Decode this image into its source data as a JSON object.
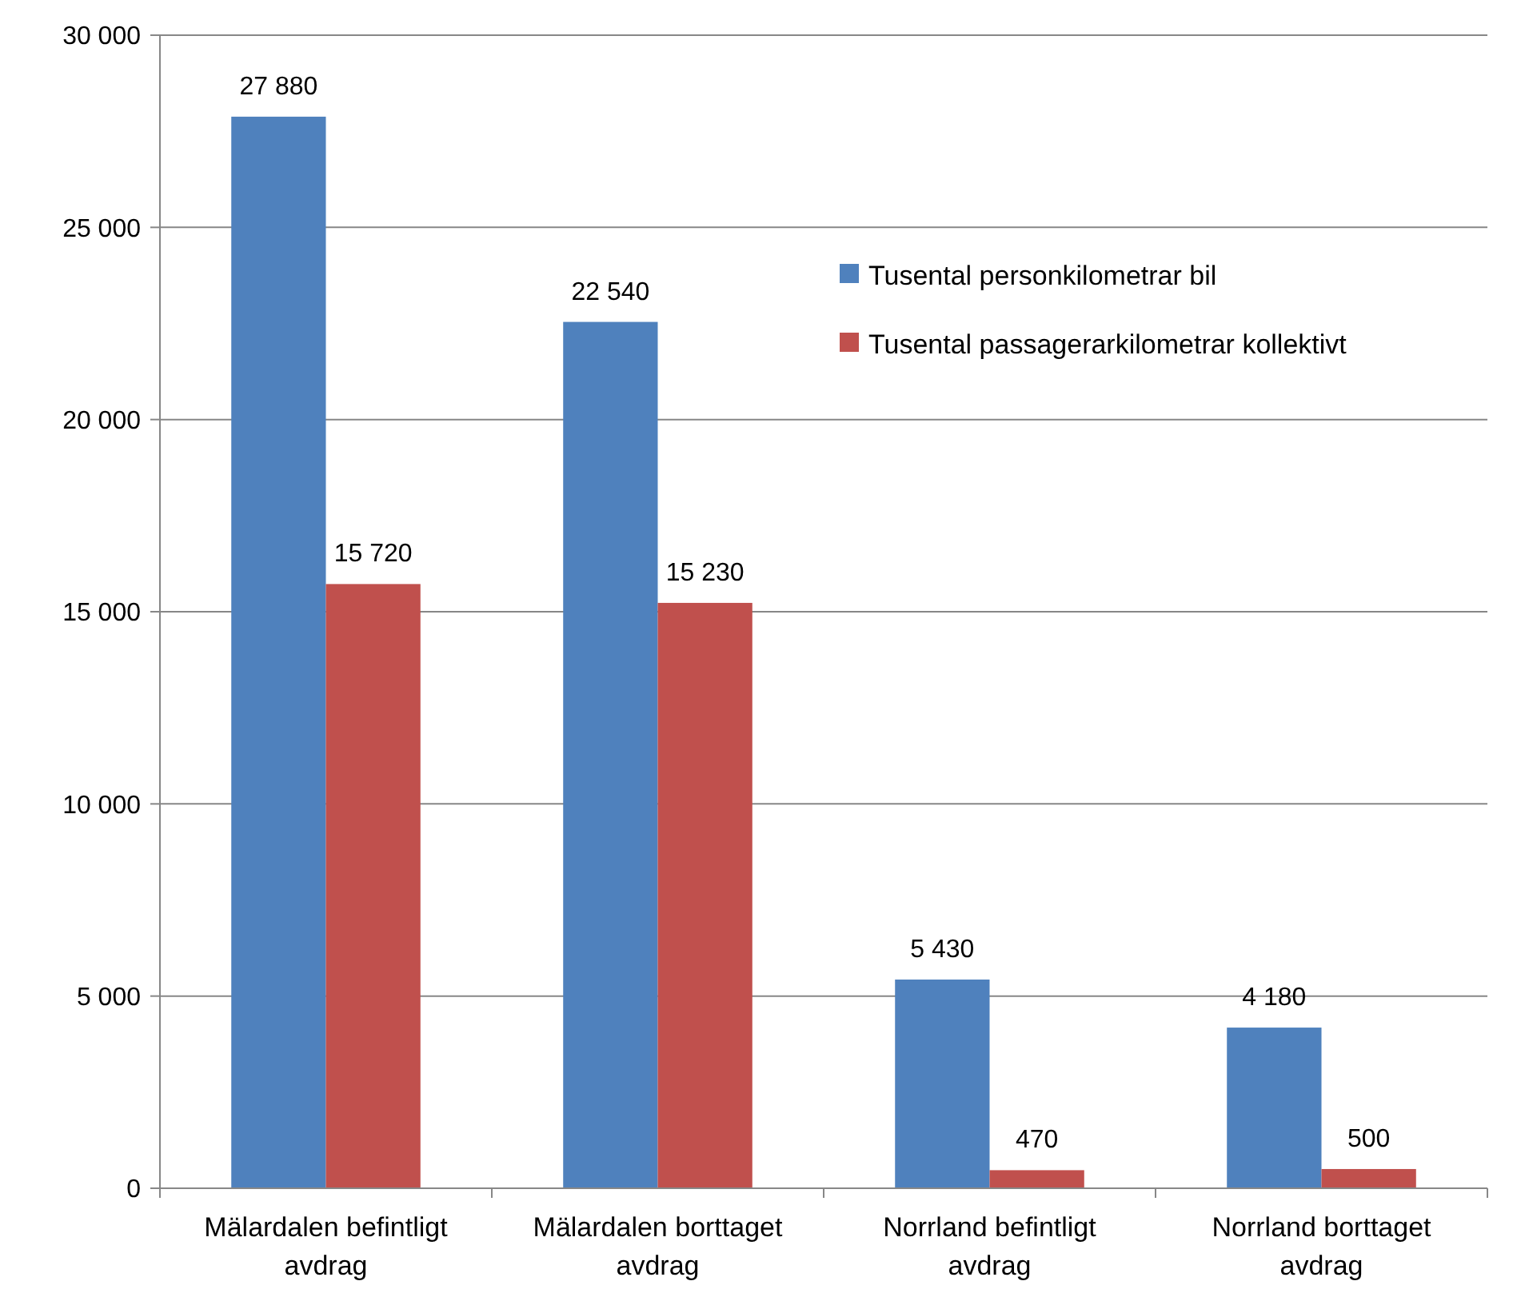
{
  "chart_data": {
    "type": "bar",
    "categories": [
      "Mälardalen befintligt avdrag",
      "Mälardalen borttaget avdrag",
      "Norrland befintligt avdrag",
      "Norrland borttaget avdrag"
    ],
    "series": [
      {
        "name": "Tusental personkilometrar bil",
        "color": "#4f81bd",
        "values": [
          27880,
          22540,
          5430,
          4180
        ],
        "value_labels": [
          "27 880",
          "22 540",
          "5 430",
          "4 180"
        ]
      },
      {
        "name": "Tusental passagerarkilometrar kollektivt",
        "color": "#c0504d",
        "values": [
          15720,
          15230,
          470,
          500
        ],
        "value_labels": [
          "15 720",
          "15 230",
          "470",
          "500"
        ]
      }
    ],
    "ylim": [
      0,
      30000
    ],
    "yticks": [
      {
        "value": 0,
        "label": "0"
      },
      {
        "value": 5000,
        "label": "5 000"
      },
      {
        "value": 10000,
        "label": "10 000"
      },
      {
        "value": 15000,
        "label": "15 000"
      },
      {
        "value": 20000,
        "label": "20 000"
      },
      {
        "value": 25000,
        "label": "25 000"
      },
      {
        "value": 30000,
        "label": "30 000"
      }
    ],
    "grid": "y",
    "legend": "top right"
  }
}
